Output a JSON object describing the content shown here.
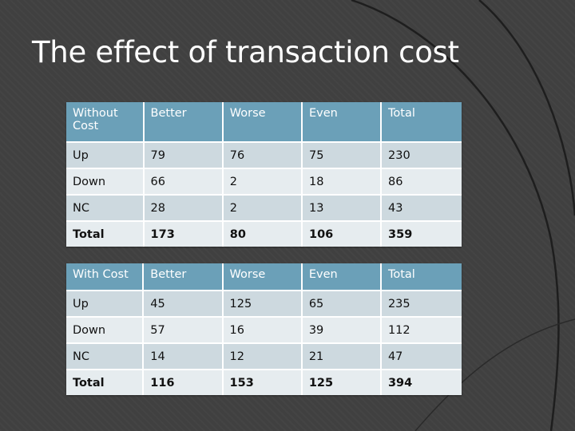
{
  "slide": {
    "title": "The effect of transaction cost"
  },
  "tables": [
    {
      "header": [
        "Without Cost",
        "Better",
        "Worse",
        "Even",
        "Total"
      ],
      "rows": [
        [
          "Up",
          "79",
          "76",
          "75",
          "230"
        ],
        [
          "Down",
          "66",
          "2",
          "18",
          "86"
        ],
        [
          "NC",
          "28",
          "2",
          "13",
          "43"
        ],
        [
          "Total",
          "173",
          "80",
          "106",
          "359"
        ]
      ]
    },
    {
      "header": [
        "With Cost",
        "Better",
        "Worse",
        "Even",
        "Total"
      ],
      "rows": [
        [
          "Up",
          "45",
          "125",
          "65",
          "235"
        ],
        [
          "Down",
          "57",
          "16",
          "39",
          "112"
        ],
        [
          "NC",
          "14",
          "12",
          "21",
          "47"
        ],
        [
          "Total",
          "116",
          "153",
          "125",
          "394"
        ]
      ]
    }
  ],
  "colors": {
    "background": "#404040",
    "header_fill": "#6ba0b8",
    "row_fill_odd": "#cdd9df",
    "row_fill_even": "#e6ecef",
    "title_text": "#ffffff"
  }
}
